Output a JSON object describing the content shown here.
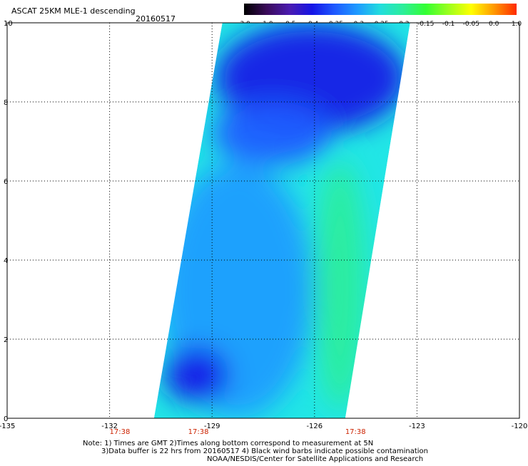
{
  "header": {
    "title": "ASCAT 25KM MLE-1 descending",
    "date": "20160517"
  },
  "colorbar": {
    "labels": [
      "-3.0",
      "-1.0",
      "-0.5",
      "-0.4",
      "-0.35",
      "-0.3",
      "-0.25",
      "-0.2",
      "-0.15",
      "-0.1",
      "-0.05",
      "0.0",
      "1.0"
    ],
    "colors": [
      "#000000",
      "#3a0a5a",
      "#4a1bb0",
      "#1414e6",
      "#1e5aff",
      "#1e9bff",
      "#22dddd",
      "#2cee9a",
      "#33ff33",
      "#9bff1e",
      "#ffff00",
      "#ff9900",
      "#ff2a00"
    ]
  },
  "chart_data": {
    "type": "heatmap",
    "title": "ASCAT 25KM MLE-1 descending",
    "xlabel": "",
    "ylabel": "",
    "xlim": [
      -135,
      -120
    ],
    "ylim": [
      0,
      10
    ],
    "x_ticks": [
      "-135",
      "-132",
      "-129",
      "-126",
      "-123",
      "-120"
    ],
    "y_ticks": [
      "0",
      "2",
      "4",
      "6",
      "8",
      "10"
    ],
    "grid": true,
    "colorbar_range": [
      -3.0,
      1.0
    ],
    "time_labels": [
      {
        "lon": -131.7,
        "text": "17:38"
      },
      {
        "lon": -129.4,
        "text": "17:38"
      },
      {
        "lon": -124.8,
        "text": "17:38"
      }
    ],
    "swath_corners": {
      "bottom_left": [
        -130.7,
        0.0
      ],
      "bottom_right": [
        -125.1,
        0.0
      ],
      "top_right": [
        -123.2,
        10.0
      ],
      "top_left": [
        -128.7,
        10.0
      ]
    },
    "regions": [
      {
        "name": "deep-blue north",
        "lon": [
          -128.9,
          -123.3
        ],
        "lat": [
          7.2,
          10.0
        ],
        "value": -0.4
      },
      {
        "name": "blue band",
        "lon": [
          -129.0,
          -125.5
        ],
        "lat": [
          6.4,
          8.0
        ],
        "value": -0.37
      },
      {
        "name": "cyan core",
        "lon": [
          -130.5,
          -126.0
        ],
        "lat": [
          0.0,
          6.5
        ],
        "value": -0.3
      },
      {
        "name": "green east",
        "lon": [
          -126.0,
          -124.5
        ],
        "lat": [
          0.2,
          6.5
        ],
        "value": -0.2
      },
      {
        "name": "blue southwest",
        "lon": [
          -130.4,
          -128.5
        ],
        "lat": [
          0.4,
          1.8
        ],
        "value": -0.38
      }
    ]
  },
  "notes": {
    "line1": "Note: 1) Times are GMT 2)Times along bottom correspond to measurement at 5N",
    "line2": "3)Data buffer is 22 hrs from 20160517 4) Black wind barbs indicate possible contamination",
    "line3": "NOAA/NESDIS/Center for Satellite Applications and Research"
  }
}
